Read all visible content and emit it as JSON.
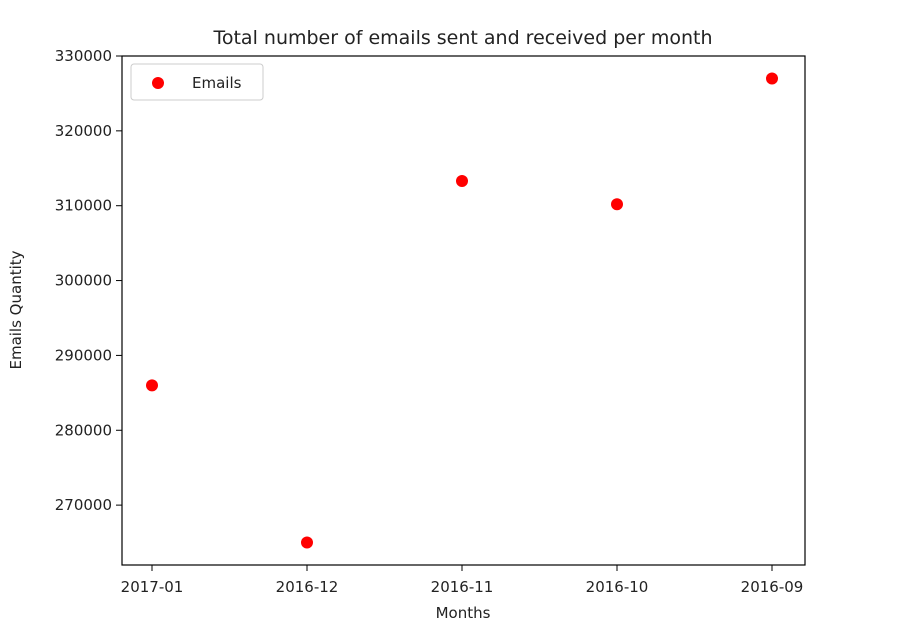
{
  "chart_data": {
    "type": "scatter",
    "title": "Total number of emails sent and received per month",
    "xlabel": "Months",
    "ylabel": "Emails Quantity",
    "categories": [
      "2017-01",
      "2016-12",
      "2016-11",
      "2016-10",
      "2016-09"
    ],
    "series": [
      {
        "name": "Emails",
        "color": "#ff0000",
        "values": [
          286000,
          265000,
          313300,
          310200,
          327000
        ]
      }
    ],
    "ylim": [
      262000,
      330000
    ],
    "yticks": [
      270000,
      280000,
      290000,
      300000,
      310000,
      320000,
      330000
    ],
    "ytick_labels": [
      "270000",
      "280000",
      "290000",
      "300000",
      "310000",
      "320000",
      "330000"
    ],
    "legend_position": "top-left",
    "grid": false
  }
}
